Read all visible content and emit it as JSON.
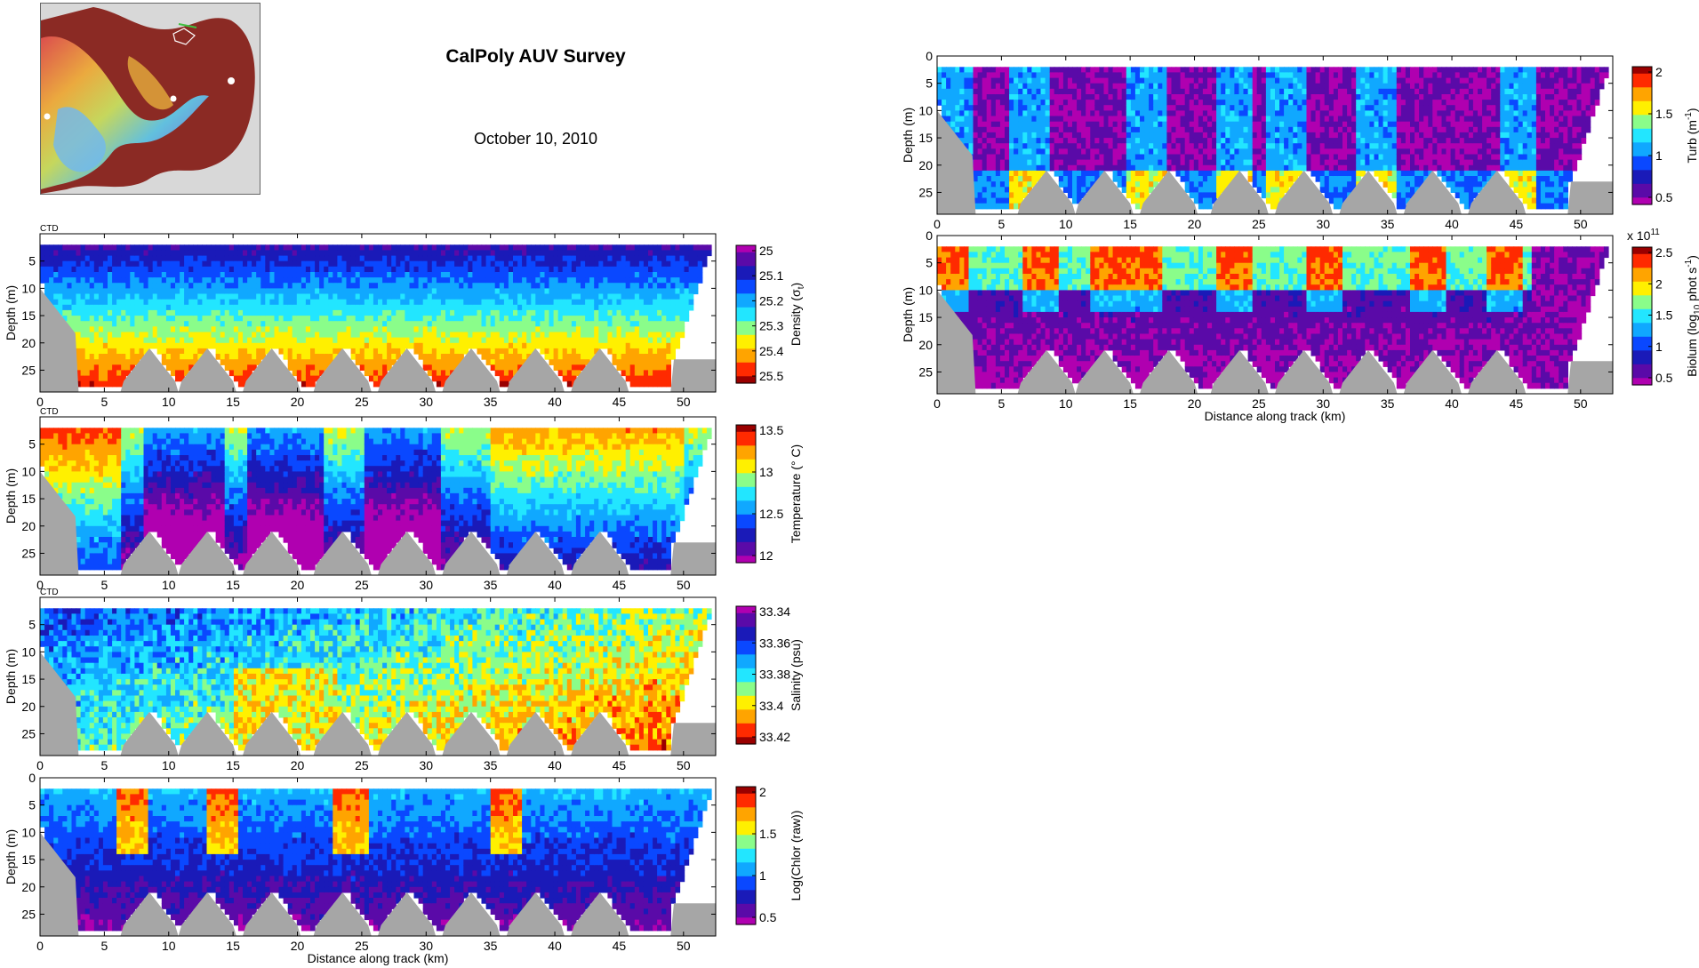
{
  "header": {
    "title": "CalPoly AUV Survey",
    "date": "October 10, 2010"
  },
  "map": {
    "icon": "bay-relief-map-icon"
  },
  "colors": {
    "seafloor": "#a6a6a6",
    "colormap": [
      "#b000b0",
      "#5a0aa8",
      "#1a1ab8",
      "#0a48ff",
      "#10a8ff",
      "#22e6ff",
      "#8afd8a",
      "#fff000",
      "#ffa400",
      "#ff2a00",
      "#9a0000"
    ]
  },
  "chart_data": [
    {
      "type": "heatmap",
      "id": "density",
      "tag": "CTD",
      "ylabel": "Depth (m)",
      "xlabel": "",
      "xlim": [
        0,
        52.5
      ],
      "ylim": [
        29,
        0
      ],
      "xticks": [
        0,
        5,
        10,
        15,
        20,
        25,
        30,
        35,
        40,
        45,
        50
      ],
      "yticks": [
        0,
        5,
        10,
        15,
        20,
        25
      ],
      "yticks_shown": [
        5,
        10,
        15,
        20,
        25
      ],
      "colorbar": {
        "label_base": "Density (σ",
        "label_sub": "t",
        "label_end": ")",
        "ticks": [
          "25",
          "25.1",
          "25.2",
          "25.3",
          "25.4",
          "25.5"
        ],
        "reversed": true
      },
      "style": "density"
    },
    {
      "type": "heatmap",
      "id": "temperature",
      "tag": "CTD",
      "ylabel": "Depth (m)",
      "xlabel": "",
      "xlim": [
        0,
        52.5
      ],
      "ylim": [
        29,
        0
      ],
      "xticks": [
        0,
        5,
        10,
        15,
        20,
        25,
        30,
        35,
        40,
        45,
        50
      ],
      "yticks": [
        0,
        5,
        10,
        15,
        20,
        25
      ],
      "yticks_shown": [
        5,
        10,
        15,
        20,
        25
      ],
      "colorbar": {
        "label_base": "Temperature (° C)",
        "ticks": [
          "13.5",
          "13",
          "12.5",
          "12"
        ],
        "reversed": false
      },
      "style": "temperature"
    },
    {
      "type": "heatmap",
      "id": "salinity",
      "tag": "CTD",
      "ylabel": "Depth (m)",
      "xlabel": "",
      "xlim": [
        0,
        52.5
      ],
      "ylim": [
        29,
        0
      ],
      "xticks": [
        0,
        5,
        10,
        15,
        20,
        25,
        30,
        35,
        40,
        45,
        50
      ],
      "yticks": [
        0,
        5,
        10,
        15,
        20,
        25
      ],
      "yticks_shown": [
        5,
        10,
        15,
        20,
        25
      ],
      "colorbar": {
        "label_base": "Salinity (psu)",
        "ticks": [
          "33.34",
          "33.36",
          "33.38",
          "33.4",
          "33.42"
        ],
        "reversed": true
      },
      "style": "salinity"
    },
    {
      "type": "heatmap",
      "id": "chlor",
      "tag": "",
      "ylabel": "Depth (m)",
      "xlabel": "Distance along track (km)",
      "xlim": [
        0,
        52.5
      ],
      "ylim": [
        29,
        0
      ],
      "xticks": [
        0,
        5,
        10,
        15,
        20,
        25,
        30,
        35,
        40,
        45,
        50
      ],
      "yticks": [
        0,
        5,
        10,
        15,
        20,
        25
      ],
      "yticks_shown": [
        0,
        5,
        10,
        15,
        20,
        25
      ],
      "colorbar": {
        "label_base": "Log(Chlor (raw))",
        "ticks": [
          "2",
          "1.5",
          "1",
          "0.5"
        ],
        "reversed": false
      },
      "style": "chlor"
    },
    {
      "type": "heatmap",
      "id": "turb",
      "tag": "",
      "ylabel": "Depth (m)",
      "xlabel": "",
      "xlim": [
        0,
        52.5
      ],
      "ylim": [
        29,
        0
      ],
      "xticks": [
        0,
        5,
        10,
        15,
        20,
        25,
        30,
        35,
        40,
        45,
        50
      ],
      "yticks": [
        0,
        5,
        10,
        15,
        20,
        25
      ],
      "yticks_shown": [
        0,
        5,
        10,
        15,
        20,
        25
      ],
      "colorbar": {
        "label_base": "Turb (m",
        "label_sup": "-1",
        "label_end": ")",
        "ticks": [
          "2",
          "1.5",
          "1",
          "0.5"
        ],
        "reversed": false
      },
      "style": "turb"
    },
    {
      "type": "heatmap",
      "id": "biolum",
      "tag": "",
      "ylabel": "Depth (m)",
      "xlabel": "Distance along track (km)",
      "xlim": [
        0,
        52.5
      ],
      "ylim": [
        29,
        0
      ],
      "xticks": [
        0,
        5,
        10,
        15,
        20,
        25,
        30,
        35,
        40,
        45,
        50
      ],
      "yticks": [
        0,
        5,
        10,
        15,
        20,
        25
      ],
      "yticks_shown": [
        0,
        5,
        10,
        15,
        20,
        25
      ],
      "colorbar": {
        "label_base": "Biolum (log",
        "label_sub": "10",
        "label_mid": " phot s",
        "label_sup": "-1",
        "label_end": ")",
        "ticks": [
          "2.5",
          "2",
          "1.5",
          "1",
          "0.5"
        ],
        "reversed": false,
        "exponent_base": "x 10",
        "exponent_sup": "11"
      },
      "style": "biolum"
    }
  ]
}
